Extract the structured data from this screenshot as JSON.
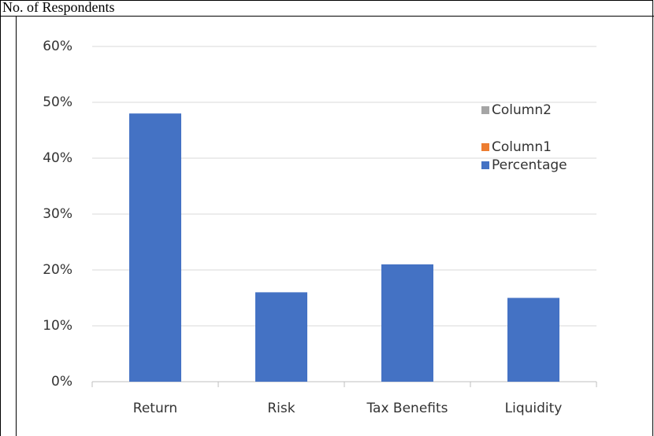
{
  "header": "No. of Respondents",
  "chart_data": {
    "type": "bar",
    "categories": [
      "Return",
      "Risk",
      "Tax Benefits",
      "Liquidity"
    ],
    "series": [
      {
        "name": "Column2",
        "color": "#a5a5a5",
        "values": [
          null,
          null,
          null,
          null
        ]
      },
      {
        "name": "Column1",
        "color": "#ed7d31",
        "values": [
          null,
          null,
          null,
          null
        ]
      },
      {
        "name": "Percentage",
        "color": "#4472c4",
        "values": [
          48,
          16,
          21,
          15
        ]
      }
    ],
    "ylim": [
      0,
      60
    ],
    "yticks": [
      {
        "value": 0,
        "label": "0%"
      },
      {
        "value": 10,
        "label": "10%"
      },
      {
        "value": 20,
        "label": "20%"
      },
      {
        "value": 30,
        "label": "30%"
      },
      {
        "value": 40,
        "label": "40%"
      },
      {
        "value": 50,
        "label": "50%"
      },
      {
        "value": 60,
        "label": "60%"
      }
    ],
    "grid": true
  }
}
